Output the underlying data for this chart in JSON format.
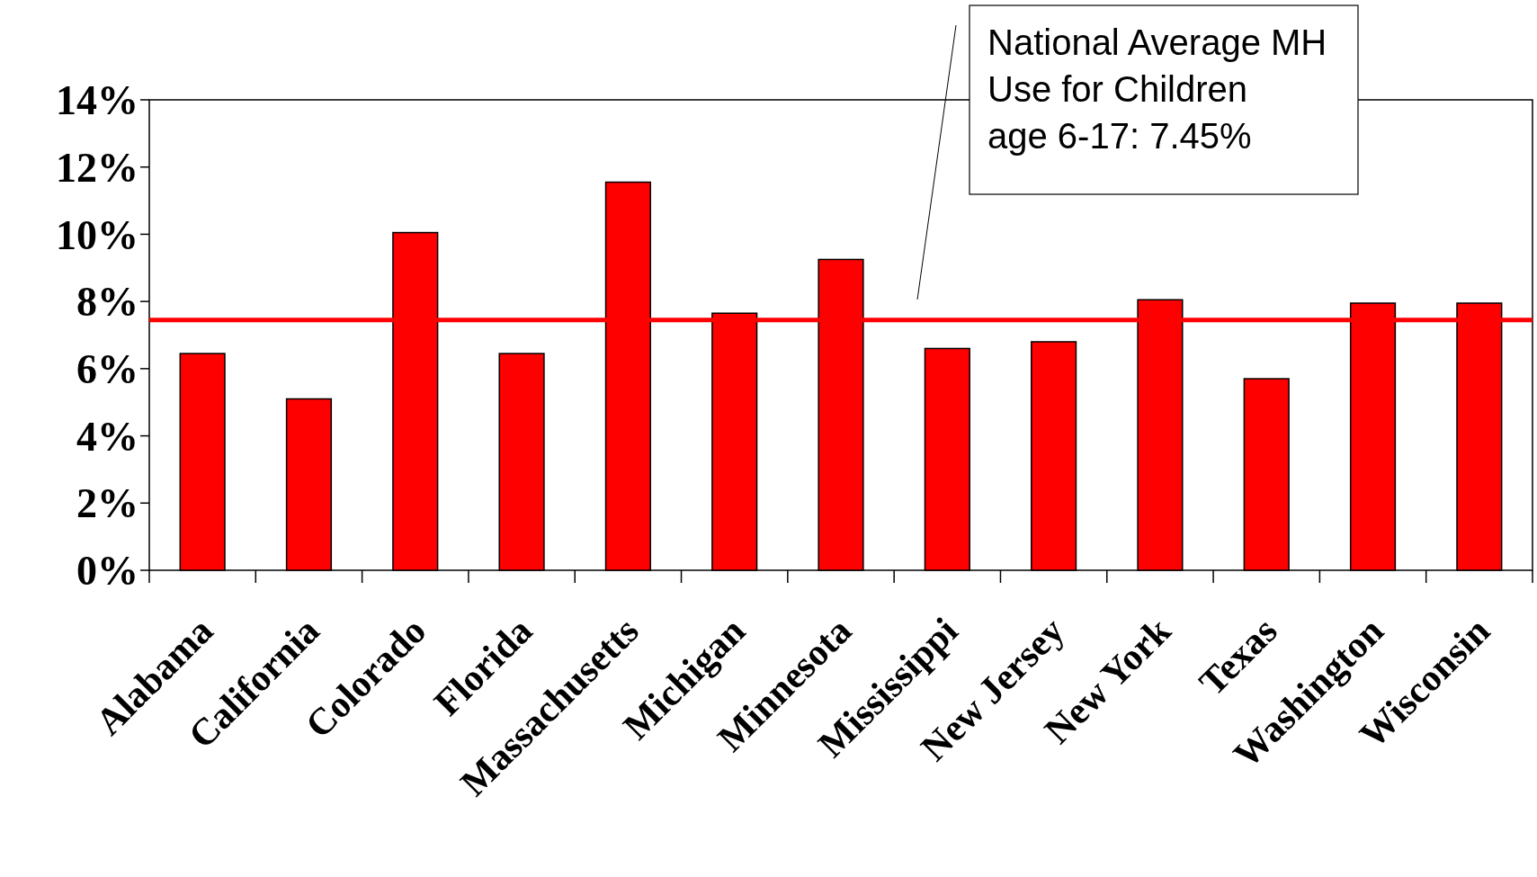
{
  "chart_data": {
    "type": "bar",
    "categories": [
      "Alabama",
      "California",
      "Colorado",
      "Florida",
      "Massachusetts",
      "Michigan",
      "Minnesota",
      "Mississippi",
      "New Jersey",
      "New York",
      "Texas",
      "Washington",
      "Wisconsin"
    ],
    "values": [
      6.45,
      5.1,
      10.05,
      6.45,
      11.55,
      7.65,
      9.25,
      6.6,
      6.8,
      8.05,
      5.7,
      7.95,
      7.95
    ],
    "color": "#ff0000",
    "ylim": [
      0,
      14
    ],
    "yticks": [
      {
        "value": 0,
        "label": "0%"
      },
      {
        "value": 2,
        "label": "2%"
      },
      {
        "value": 4,
        "label": "4%"
      },
      {
        "value": 6,
        "label": "6%"
      },
      {
        "value": 8,
        "label": "8%"
      },
      {
        "value": 10,
        "label": "10%"
      },
      {
        "value": 12,
        "label": "12%"
      },
      {
        "value": 14,
        "label": "14%"
      }
    ],
    "ref_lines": [
      {
        "axis": "y",
        "value": 7.45,
        "color": "#ff0000"
      }
    ],
    "annotations": [
      "National Average MH Use for Children age 6-17: 7.45%"
    ],
    "grid": false
  }
}
